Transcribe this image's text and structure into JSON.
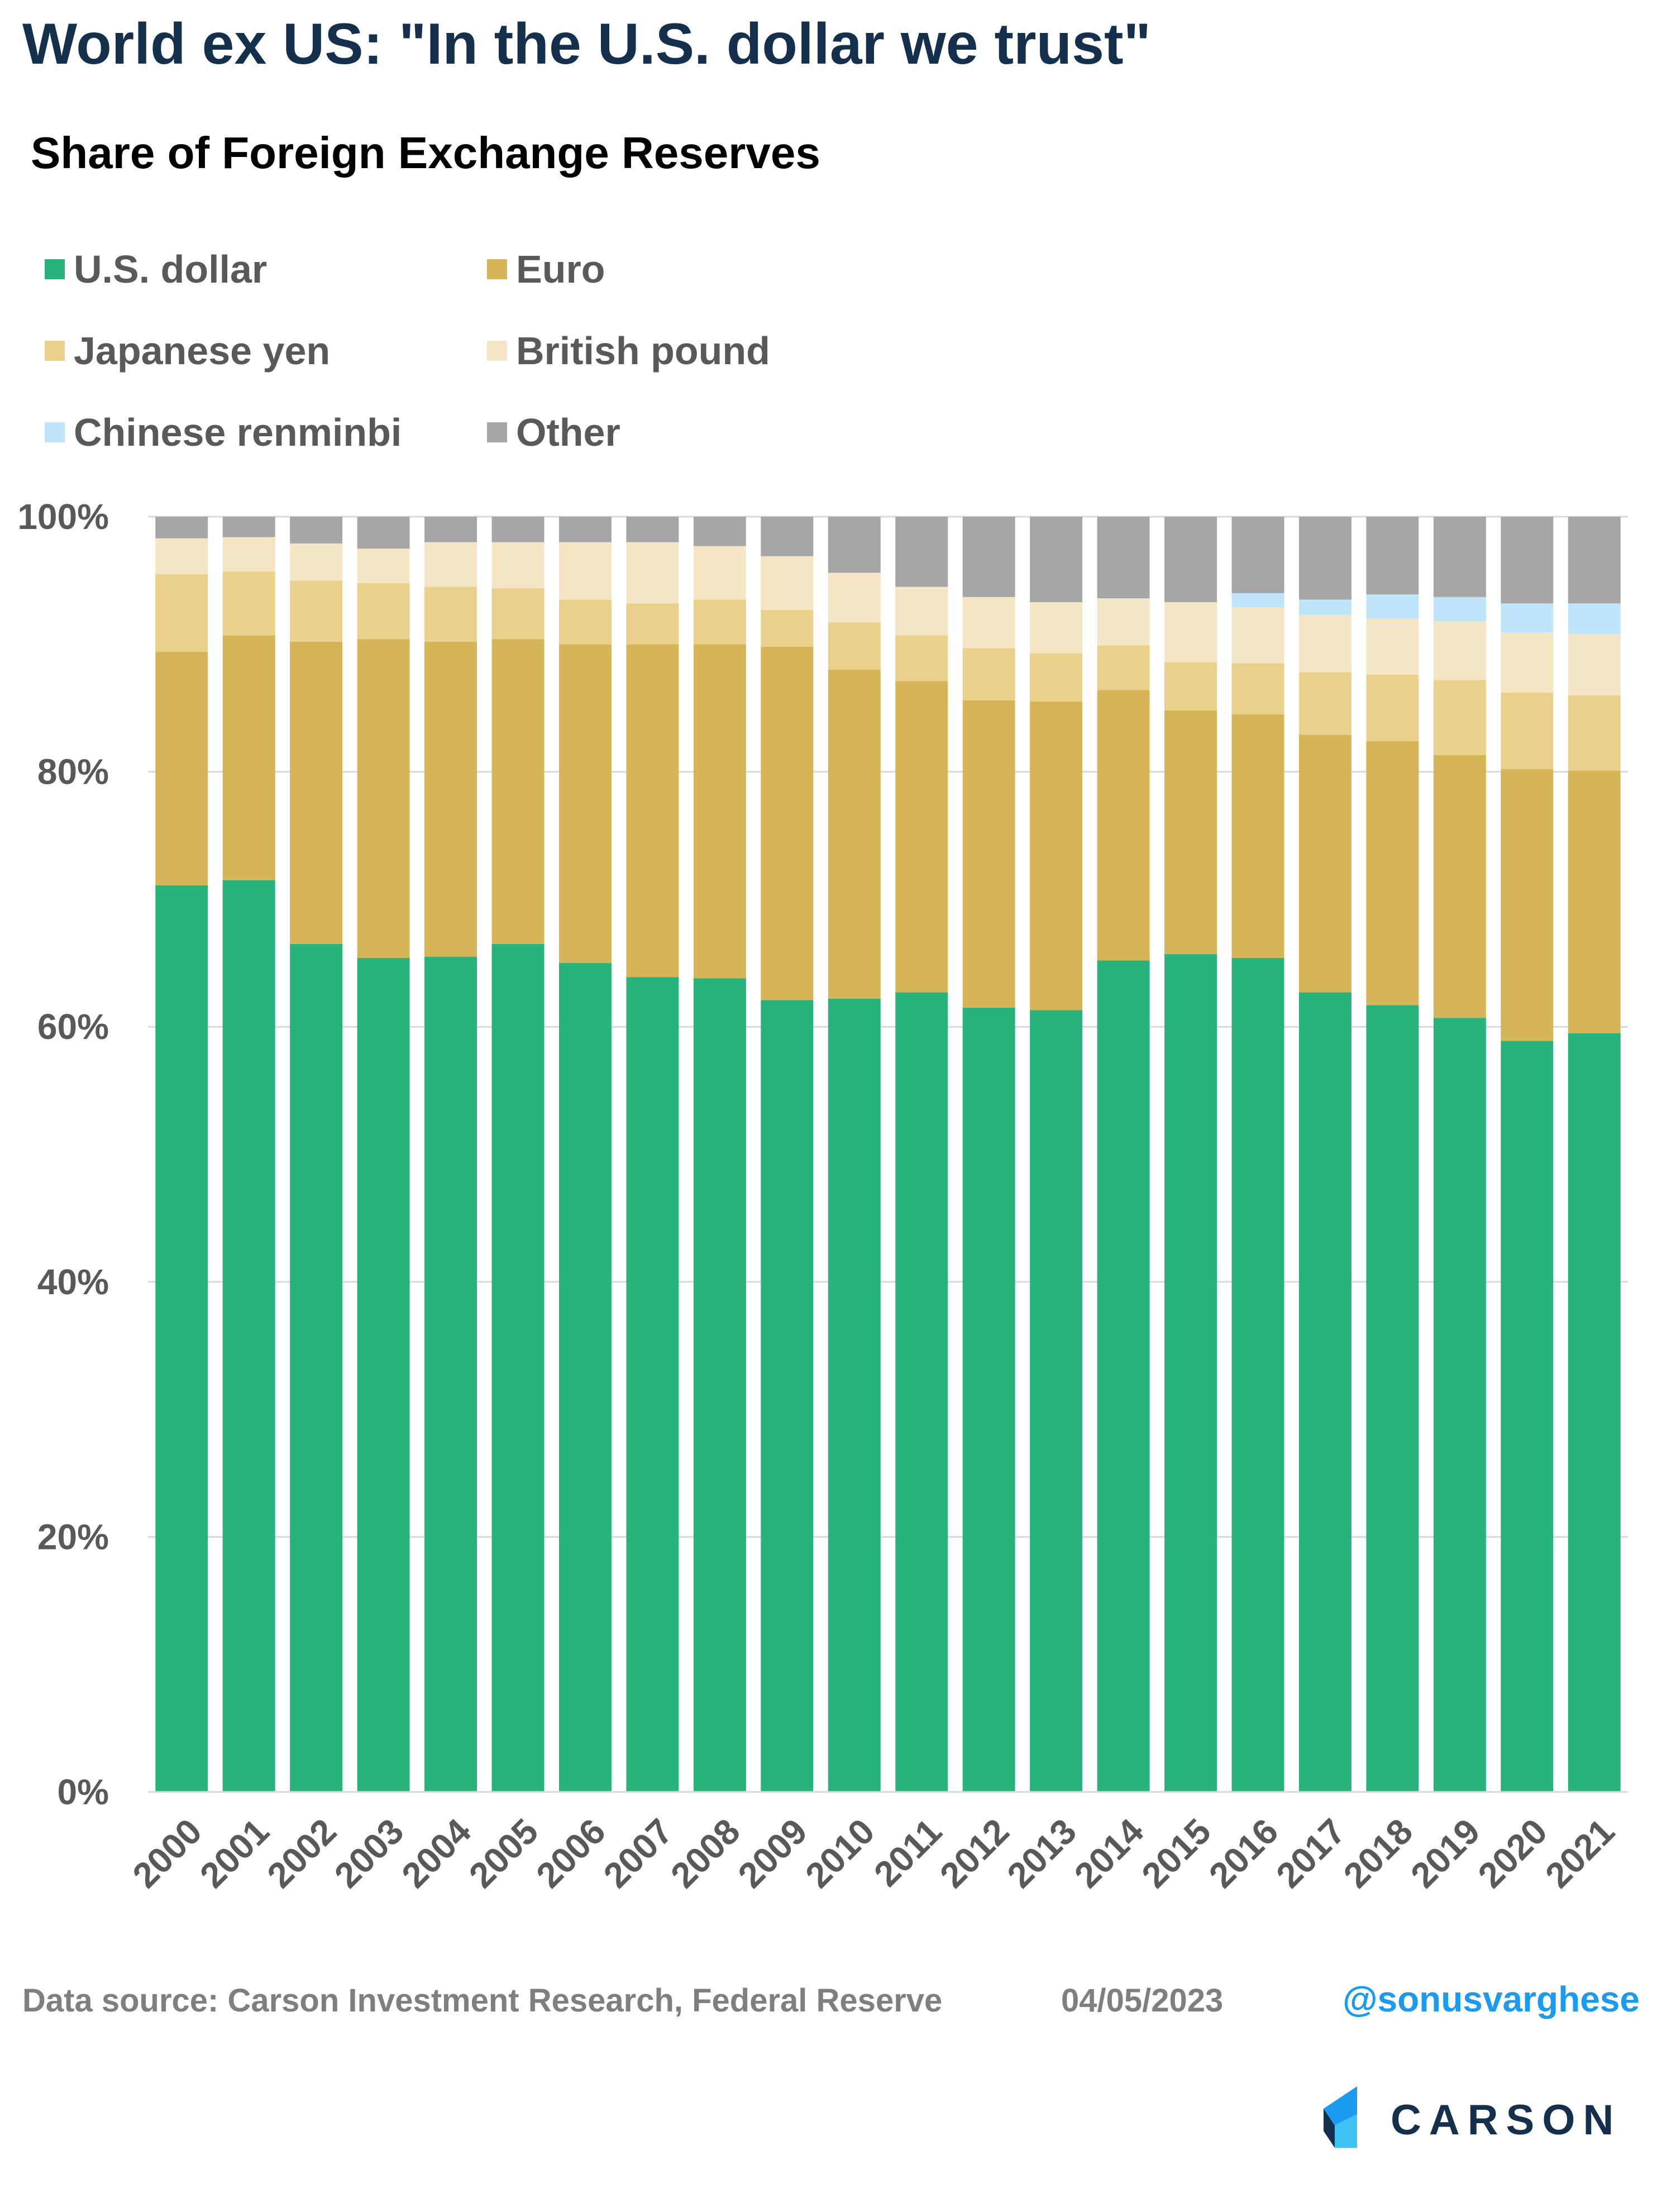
{
  "title": "World ex US: \"In the U.S. dollar we trust\"",
  "footer": {
    "source": "Data source: Carson Investment Research, Federal Reserve",
    "date": "04/05/2023",
    "handle": "@sonusvarghese",
    "logo_text": "CARSON"
  },
  "legend": [
    {
      "label": "U.S. dollar",
      "color": "#27b37b"
    },
    {
      "label": "Euro",
      "color": "#d6b558"
    },
    {
      "label": "Japanese yen",
      "color": "#e9d08b"
    },
    {
      "label": "British pound",
      "color": "#f4e6c4"
    },
    {
      "label": "Chinese renminbi",
      "color": "#bfe5fb"
    },
    {
      "label": "Other",
      "color": "#a6a6a6"
    }
  ],
  "chart_data": {
    "type": "bar",
    "stacked": true,
    "title": "Share of Foreign Exchange Reserves",
    "xlabel": "",
    "ylabel": "",
    "ylim": [
      0,
      100
    ],
    "yticks": [
      "0%",
      "20%",
      "40%",
      "60%",
      "80%",
      "100%"
    ],
    "gridlines": true,
    "legend_position": "top-left",
    "categories": [
      "2000",
      "2001",
      "2002",
      "2003",
      "2004",
      "2005",
      "2006",
      "2007",
      "2008",
      "2009",
      "2010",
      "2011",
      "2012",
      "2013",
      "2014",
      "2015",
      "2016",
      "2017",
      "2018",
      "2019",
      "2020",
      "2021"
    ],
    "series": [
      {
        "name": "U.S. dollar",
        "color": "#27b37b",
        "values": [
          71.1,
          71.5,
          66.5,
          65.4,
          65.5,
          66.5,
          65.0,
          63.9,
          63.8,
          62.1,
          62.2,
          62.7,
          61.5,
          61.3,
          65.2,
          65.7,
          65.4,
          62.7,
          61.7,
          60.7,
          58.9,
          59.5
        ]
      },
      {
        "name": "Euro",
        "color": "#d6b558",
        "values": [
          18.3,
          19.2,
          23.7,
          25.0,
          24.7,
          23.9,
          25.0,
          26.1,
          26.2,
          27.7,
          25.8,
          24.4,
          24.1,
          24.2,
          21.2,
          19.1,
          19.1,
          20.2,
          20.7,
          20.6,
          21.3,
          20.6
        ]
      },
      {
        "name": "Japanese yen",
        "color": "#e9d08b",
        "values": [
          6.1,
          5.0,
          4.8,
          4.4,
          4.3,
          4.0,
          3.5,
          3.2,
          3.5,
          2.9,
          3.7,
          3.6,
          4.1,
          3.8,
          3.5,
          3.8,
          4.0,
          4.9,
          5.2,
          5.9,
          6.0,
          5.9
        ]
      },
      {
        "name": "British pound",
        "color": "#f4e6c4",
        "values": [
          2.8,
          2.7,
          2.9,
          2.7,
          3.5,
          3.6,
          4.5,
          4.8,
          4.2,
          4.2,
          3.9,
          3.8,
          4.0,
          4.0,
          3.7,
          4.7,
          4.4,
          4.5,
          4.4,
          4.6,
          4.7,
          4.8
        ]
      },
      {
        "name": "Chinese renminbi",
        "color": "#bfe5fb",
        "values": [
          0,
          0,
          0,
          0,
          0,
          0,
          0,
          0,
          0,
          0,
          0,
          0,
          0,
          0,
          0,
          0,
          1.1,
          1.2,
          1.9,
          1.9,
          2.3,
          2.4
        ]
      },
      {
        "name": "Other",
        "color": "#a6a6a6",
        "values": [
          1.7,
          1.6,
          2.1,
          2.5,
          2.0,
          2.0,
          2.0,
          2.0,
          2.3,
          3.1,
          4.4,
          5.5,
          6.3,
          6.7,
          6.4,
          6.7,
          6.0,
          6.5,
          6.1,
          6.3,
          6.8,
          6.8
        ]
      }
    ]
  }
}
